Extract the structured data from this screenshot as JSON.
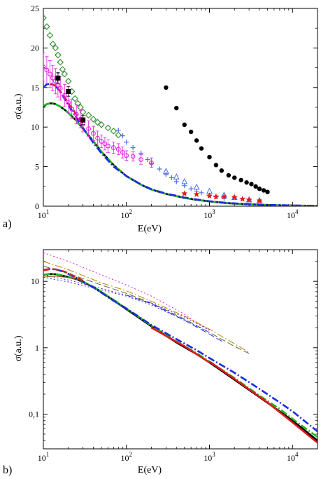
{
  "chart_data": [
    {
      "type": "scatter",
      "panel_label": "a)",
      "xlabel": "E(eV)",
      "ylabel": "σ(a.u.)",
      "x_scale": "log",
      "y_scale": "linear",
      "xlim": [
        10,
        20000
      ],
      "ylim": [
        0,
        25
      ],
      "x_ticks": [
        10,
        100,
        1000,
        10000
      ],
      "x_tick_labels": [
        "10",
        "10",
        "10",
        "10"
      ],
      "x_tick_exponents": [
        "1",
        "2",
        "3",
        "4"
      ],
      "y_ticks": [
        0,
        5,
        10,
        15,
        20,
        25
      ],
      "y_tick_labels": [
        "0",
        "5",
        "10",
        "15",
        "20",
        "25"
      ],
      "grid": false,
      "series": [
        {
          "style": "line",
          "color": "#000000",
          "dash": "solid",
          "x": [
            10,
            11,
            12,
            13,
            14,
            16,
            18,
            20,
            25,
            30,
            40,
            50,
            70,
            100,
            150,
            200,
            300,
            500,
            700,
            1000,
            1500,
            2000,
            3000,
            5000,
            7000,
            10000,
            14000,
            20000
          ],
          "y": [
            12.6,
            12.9,
            13.0,
            13.0,
            12.9,
            12.6,
            12.2,
            11.8,
            10.8,
            9.8,
            8.2,
            6.9,
            5.2,
            3.8,
            2.7,
            2.1,
            1.55,
            1.05,
            0.8,
            0.6,
            0.42,
            0.33,
            0.24,
            0.15,
            0.11,
            0.08,
            0.06,
            0.05
          ]
        },
        {
          "style": "line",
          "color": "#22b822",
          "dash": "dashdot",
          "x": [
            10,
            11,
            12,
            13,
            14,
            16,
            18,
            20,
            25,
            30,
            40,
            50,
            70,
            100,
            150,
            200,
            300,
            500,
            700,
            1000,
            1500,
            2000,
            3000,
            5000,
            7000,
            10000,
            14000,
            20000
          ],
          "y": [
            12.7,
            12.9,
            13.0,
            13.0,
            12.9,
            12.6,
            12.2,
            11.8,
            10.8,
            9.8,
            8.2,
            6.9,
            5.2,
            3.8,
            2.7,
            2.1,
            1.55,
            1.05,
            0.8,
            0.6,
            0.42,
            0.33,
            0.24,
            0.15,
            0.11,
            0.08,
            0.06,
            0.05
          ]
        },
        {
          "style": "line",
          "color": "#1a2be0",
          "dash": "dashdot",
          "x": [
            10,
            11,
            12,
            13,
            14,
            15,
            16,
            18,
            20,
            25,
            30,
            40,
            50,
            70,
            100,
            150,
            200,
            300,
            500,
            700,
            1000,
            1500,
            2000,
            3000,
            5000,
            7000,
            10000,
            14000,
            20000
          ],
          "y": [
            15.0,
            15.4,
            15.5,
            15.4,
            15.2,
            14.8,
            14.4,
            13.6,
            12.8,
            11.2,
            9.9,
            8.0,
            6.7,
            5.0,
            3.8,
            2.75,
            2.15,
            1.6,
            1.1,
            0.85,
            0.63,
            0.45,
            0.36,
            0.26,
            0.17,
            0.13,
            0.09,
            0.07,
            0.05
          ]
        },
        {
          "style": "line",
          "color": "#e01a1a",
          "dash": "dash",
          "x": [
            12,
            13,
            14,
            15,
            16,
            18,
            20,
            22,
            25,
            28,
            30
          ],
          "y": [
            15.4,
            15.4,
            15.2,
            14.9,
            14.5,
            13.8,
            13.0,
            12.4,
            11.6,
            10.8,
            10.2
          ]
        },
        {
          "style": "markers",
          "marker": "filled-circle",
          "color": "#000000",
          "x": [
            300,
            400,
            500,
            600,
            700,
            800,
            1000,
            1200,
            1400,
            1700,
            2000,
            2400,
            2800,
            3200,
            3600,
            4000,
            4500,
            5000
          ],
          "y": [
            15.0,
            12.4,
            10.3,
            9.4,
            8.3,
            7.3,
            6.2,
            5.2,
            4.5,
            3.9,
            3.6,
            3.3,
            3.0,
            2.8,
            2.5,
            2.2,
            2.0,
            1.8
          ]
        },
        {
          "style": "markers",
          "marker": "open-diamond",
          "color": "#2e8b2e",
          "x": [
            10,
            11,
            12,
            13,
            14,
            15,
            16,
            17,
            18,
            20,
            22,
            24,
            26,
            28,
            30,
            35,
            40,
            45,
            50,
            60,
            70,
            80
          ],
          "y": [
            23.8,
            22.7,
            21.6,
            20.5,
            20.0,
            19.1,
            18.2,
            17.3,
            16.7,
            15.8,
            14.5,
            13.6,
            13.0,
            12.5,
            11.9,
            11.5,
            11.0,
            10.6,
            10.3,
            9.9,
            9.5,
            9.0
          ]
        },
        {
          "style": "markers",
          "marker": "open-circle",
          "color": "#e020e0",
          "error_bars": true,
          "x": [
            10,
            11,
            12,
            13,
            14,
            15,
            16,
            18,
            20,
            22,
            25,
            28,
            30,
            35,
            40,
            45,
            50,
            55,
            60,
            70,
            80,
            90,
            100,
            120,
            150,
            200
          ],
          "y": [
            17.6,
            17.2,
            16.7,
            16.2,
            15.8,
            15.3,
            14.9,
            14.0,
            13.1,
            12.3,
            11.6,
            11.0,
            10.4,
            9.8,
            9.2,
            8.6,
            8.2,
            7.9,
            7.6,
            7.4,
            7.2,
            6.8,
            6.4,
            6.3,
            5.9,
            5.5
          ],
          "y_err": [
            1.8,
            1.7,
            1.7,
            1.6,
            1.6,
            1.5,
            1.5,
            1.4,
            1.3,
            1.2,
            1.2,
            1.1,
            1.0,
            1.0,
            0.9,
            0.9,
            0.8,
            0.8,
            0.8,
            0.7,
            0.7,
            0.7,
            0.6,
            0.6,
            0.6,
            0.6
          ]
        },
        {
          "style": "markers",
          "marker": "plus",
          "color": "#4a6ef0",
          "x": [
            80,
            90,
            100,
            120,
            150,
            180,
            200,
            250,
            300,
            350,
            400,
            500,
            600,
            700,
            800,
            1000,
            1200,
            1500
          ],
          "y": [
            9.6,
            8.9,
            8.1,
            7.4,
            6.7,
            5.9,
            5.4,
            4.7,
            4.0,
            3.6,
            3.1,
            2.6,
            2.2,
            1.9,
            1.7,
            1.4,
            1.2,
            1.0
          ]
        },
        {
          "style": "markers",
          "marker": "open-triangle",
          "color": "#4a6ef0",
          "x": [
            300,
            400,
            500,
            700,
            1000,
            1500,
            2000,
            3000,
            4000
          ],
          "y": [
            4.4,
            3.7,
            3.1,
            2.4,
            1.9,
            1.4,
            1.1,
            0.8,
            0.7
          ]
        },
        {
          "style": "markers",
          "marker": "star",
          "color": "#e01a1a",
          "x": [
            500,
            700,
            1000,
            1200,
            1500,
            2000,
            2500,
            3000,
            4000
          ],
          "y": [
            1.6,
            1.5,
            1.3,
            1.2,
            1.2,
            1.1,
            0.9,
            0.8,
            0.7
          ]
        },
        {
          "style": "markers",
          "marker": "filled-square",
          "color": "#000000",
          "error_bars": true,
          "x": [
            15,
            20,
            30
          ],
          "y": [
            16.2,
            14.5,
            10.9
          ],
          "y_err": [
            0.7,
            0.6,
            0.6
          ]
        }
      ]
    },
    {
      "type": "line",
      "panel_label": "b)",
      "xlabel": "E(eV)",
      "ylabel": "σ(a.u.)",
      "x_scale": "log",
      "y_scale": "log",
      "xlim": [
        10,
        20000
      ],
      "ylim": [
        0.03,
        30
      ],
      "x_ticks": [
        10,
        100,
        1000,
        10000
      ],
      "x_tick_labels": [
        "10",
        "10",
        "10",
        "10"
      ],
      "x_tick_exponents": [
        "1",
        "2",
        "3",
        "4"
      ],
      "y_ticks": [
        0.1,
        1,
        10
      ],
      "y_tick_labels": [
        "0,1",
        "1",
        "10"
      ],
      "grid": false,
      "series": [
        {
          "style": "line",
          "color": "#000000",
          "dash": "solid",
          "x": [
            10,
            12,
            14,
            18,
            25,
            40,
            70,
            100,
            200,
            400,
            700,
            1000,
            2000,
            4000,
            7000,
            10000,
            20000
          ],
          "y": [
            12.5,
            12.9,
            12.8,
            12.0,
            10.8,
            8.2,
            5.2,
            3.8,
            2.1,
            1.2,
            0.8,
            0.6,
            0.33,
            0.18,
            0.11,
            0.08,
            0.04
          ]
        },
        {
          "style": "line",
          "color": "#22b822",
          "dash": "dashdot",
          "x": [
            10,
            12,
            14,
            18,
            25,
            40,
            70,
            100,
            200,
            400,
            700,
            1000,
            2000,
            4000,
            7000,
            10000,
            20000
          ],
          "y": [
            12.6,
            13.0,
            12.9,
            12.1,
            10.9,
            8.3,
            5.3,
            3.9,
            2.15,
            1.25,
            0.83,
            0.62,
            0.35,
            0.19,
            0.12,
            0.085,
            0.045
          ]
        },
        {
          "style": "line",
          "color": "#1a2be0",
          "dash": "dashdot",
          "x": [
            10,
            12,
            14,
            18,
            25,
            40,
            70,
            100,
            200,
            400,
            700,
            1000,
            2000,
            4000,
            7000,
            10000,
            20000
          ],
          "y": [
            14.8,
            15.4,
            15.2,
            13.8,
            11.3,
            8.1,
            5.1,
            3.9,
            2.2,
            1.35,
            0.92,
            0.7,
            0.42,
            0.24,
            0.15,
            0.11,
            0.055
          ]
        },
        {
          "style": "line",
          "color": "#e01a1a",
          "dash": "dash",
          "x": [
            10,
            12,
            14,
            18,
            25,
            30
          ],
          "y": [
            14.6,
            15.3,
            15.2,
            14.0,
            11.6,
            10.2
          ]
        },
        {
          "style": "line",
          "color": "#e01a1a",
          "dash": "solid",
          "x": [
            200,
            500,
            1000
          ],
          "y": [
            2.0,
            1.05,
            0.6
          ]
        },
        {
          "style": "line",
          "color": "#e01a1a",
          "dash": "solid",
          "x": [
            1000,
            2000,
            5000,
            10000,
            20000
          ],
          "y": [
            0.62,
            0.34,
            0.15,
            0.075,
            0.037
          ]
        },
        {
          "style": "line",
          "color": "#e020e0",
          "dash": "dot",
          "x": [
            10,
            20,
            50,
            100,
            200,
            500,
            1000
          ],
          "y": [
            27,
            20,
            12.5,
            8.8,
            6.0,
            3.2,
            1.8
          ]
        },
        {
          "style": "line",
          "color": "#b8860b",
          "dash": "dashdot",
          "x": [
            10,
            20,
            50,
            100,
            200,
            500,
            1000,
            2000,
            3000
          ],
          "y": [
            20,
            15,
            9.5,
            7.2,
            5.0,
            3.0,
            1.9,
            1.15,
            0.85
          ]
        },
        {
          "style": "line",
          "color": "#556b2f",
          "dash": "dash",
          "x": [
            10,
            20,
            50,
            100,
            200,
            500,
            1000,
            2000,
            3000
          ],
          "y": [
            17,
            13.2,
            8.8,
            6.6,
            4.7,
            2.7,
            1.7,
            1.05,
            0.82
          ]
        },
        {
          "style": "line",
          "color": "#1a2be0",
          "dash": "dot",
          "x": [
            10,
            20,
            50,
            100,
            200,
            500,
            1000
          ],
          "y": [
            11.5,
            9.8,
            7.4,
            6.0,
            4.4,
            2.6,
            1.7
          ]
        },
        {
          "style": "line",
          "color": "#1a2be0",
          "dash": "dash",
          "x": [
            100,
            200,
            500,
            1000,
            1500
          ],
          "y": [
            6.2,
            4.6,
            2.6,
            1.6,
            1.2
          ]
        },
        {
          "style": "line",
          "color": "#6a0dad",
          "dash": "dot",
          "x": [
            10,
            20,
            50,
            100,
            200,
            500,
            1000
          ],
          "y": [
            12.5,
            10.5,
            7.8,
            6.2,
            4.7,
            2.9,
            1.85
          ]
        },
        {
          "style": "line",
          "color": "#8b4513",
          "dash": "solid",
          "x": [
            10,
            14,
            20,
            30
          ],
          "y": [
            11.6,
            12.0,
            11.4,
            10.2
          ]
        }
      ]
    }
  ]
}
